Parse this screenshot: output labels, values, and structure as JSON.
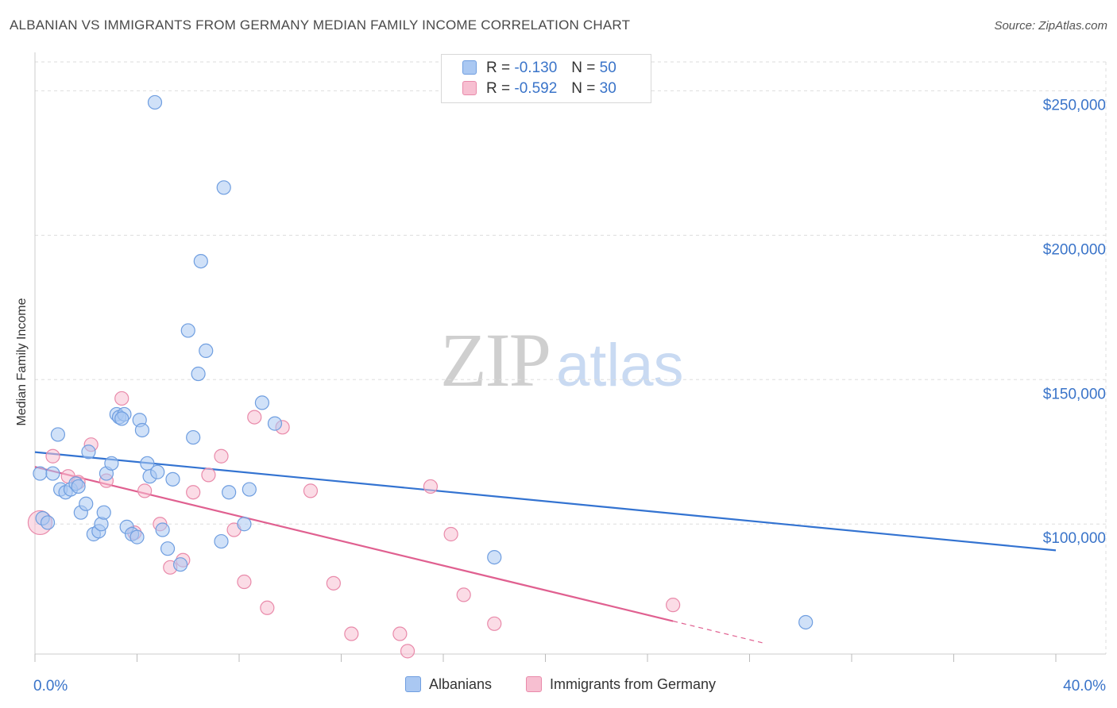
{
  "header": {
    "title": "ALBANIAN VS IMMIGRANTS FROM GERMANY MEDIAN FAMILY INCOME CORRELATION CHART",
    "source": "Source: ZipAtlas.com"
  },
  "watermark": {
    "zip": "ZIP",
    "atlas": "atlas"
  },
  "legend": {
    "albanians": {
      "r_label": "R =",
      "r_value": "-0.130",
      "n_label": "N =",
      "n_value": "50"
    },
    "germany": {
      "r_label": "R =",
      "r_value": "-0.592",
      "n_label": "N =",
      "n_value": "30"
    }
  },
  "colors": {
    "blue_fill": "#aac8f2",
    "blue_stroke": "#6f9ee0",
    "blue_line": "#3373d1",
    "pink_fill": "#f7bfd1",
    "pink_stroke": "#e98aaa",
    "pink_line": "#e06090",
    "grid": "#dddddd",
    "tick_text": "#3a74c9"
  },
  "chart_data": {
    "type": "scatter",
    "title": "ALBANIAN VS IMMIGRANTS FROM GERMANY MEDIAN FAMILY INCOME CORRELATION CHART",
    "xlabel": "",
    "ylabel": "Median Family Income",
    "xlim": [
      0,
      40
    ],
    "ylim": [
      55000,
      260000
    ],
    "x_tick_labels": [
      "0.0%",
      "40.0%"
    ],
    "y_ticks": [
      100000,
      150000,
      200000,
      250000
    ],
    "y_tick_labels": [
      "$100,000",
      "$150,000",
      "$200,000",
      "$250,000"
    ],
    "grid": true,
    "legend_position": "top-center",
    "series": [
      {
        "name": "Albanians",
        "points": [
          [
            0.2,
            117500
          ],
          [
            0.3,
            102000
          ],
          [
            0.5,
            100500
          ],
          [
            0.7,
            117500
          ],
          [
            0.9,
            131000
          ],
          [
            1.0,
            112000
          ],
          [
            1.2,
            111000
          ],
          [
            1.4,
            112000
          ],
          [
            1.6,
            114000
          ],
          [
            1.7,
            113000
          ],
          [
            1.8,
            104000
          ],
          [
            2.0,
            107000
          ],
          [
            2.1,
            125000
          ],
          [
            2.3,
            96500
          ],
          [
            2.5,
            97500
          ],
          [
            2.6,
            100000
          ],
          [
            2.7,
            104000
          ],
          [
            2.8,
            117500
          ],
          [
            3.0,
            121000
          ],
          [
            3.2,
            138000
          ],
          [
            3.3,
            137000
          ],
          [
            3.5,
            138000
          ],
          [
            3.6,
            99000
          ],
          [
            3.8,
            96500
          ],
          [
            4.0,
            95500
          ],
          [
            4.1,
            136000
          ],
          [
            4.2,
            132500
          ],
          [
            4.4,
            121000
          ],
          [
            4.5,
            116500
          ],
          [
            4.8,
            118000
          ],
          [
            5.0,
            98000
          ],
          [
            5.2,
            91500
          ],
          [
            5.4,
            115500
          ],
          [
            5.7,
            86000
          ],
          [
            6.0,
            167000
          ],
          [
            6.2,
            130000
          ],
          [
            6.4,
            152000
          ],
          [
            6.5,
            191000
          ],
          [
            6.7,
            160000
          ],
          [
            7.3,
            94000
          ],
          [
            7.4,
            216500
          ],
          [
            7.6,
            111000
          ],
          [
            8.2,
            100000
          ],
          [
            8.4,
            112000
          ],
          [
            8.9,
            142000
          ],
          [
            9.4,
            134800
          ],
          [
            4.7,
            246000
          ],
          [
            18.0,
            88500
          ],
          [
            30.2,
            66000
          ],
          [
            3.4,
            136500
          ]
        ]
      },
      {
        "name": "Immigrants from Germany",
        "points": [
          [
            0.2,
            100500
          ],
          [
            0.7,
            123500
          ],
          [
            1.3,
            116500
          ],
          [
            1.7,
            114500
          ],
          [
            2.2,
            127500
          ],
          [
            2.8,
            115000
          ],
          [
            3.4,
            143500
          ],
          [
            3.9,
            97000
          ],
          [
            4.3,
            111500
          ],
          [
            4.9,
            100000
          ],
          [
            5.3,
            85000
          ],
          [
            5.8,
            87500
          ],
          [
            6.2,
            111000
          ],
          [
            6.8,
            117000
          ],
          [
            7.3,
            123500
          ],
          [
            7.8,
            98000
          ],
          [
            8.2,
            80000
          ],
          [
            8.6,
            137000
          ],
          [
            9.1,
            71000
          ],
          [
            9.7,
            133500
          ],
          [
            10.8,
            111500
          ],
          [
            11.7,
            79500
          ],
          [
            12.4,
            62000
          ],
          [
            14.3,
            62000
          ],
          [
            14.6,
            56000
          ],
          [
            15.5,
            113000
          ],
          [
            16.3,
            96500
          ],
          [
            16.8,
            75500
          ],
          [
            18.0,
            65500
          ],
          [
            25.0,
            72000
          ]
        ]
      }
    ],
    "trendlines": [
      {
        "series": "Albanians",
        "x": [
          0,
          40
        ],
        "y": [
          124900,
          90900
        ]
      },
      {
        "series": "Immigrants from Germany",
        "x": [
          0,
          25
        ],
        "y": [
          119800,
          66400
        ],
        "dashed_to": [
          28.5,
          58900
        ]
      }
    ]
  },
  "bottom_legend": {
    "albanians_label": "Albanians",
    "germany_label": "Immigrants from Germany"
  }
}
